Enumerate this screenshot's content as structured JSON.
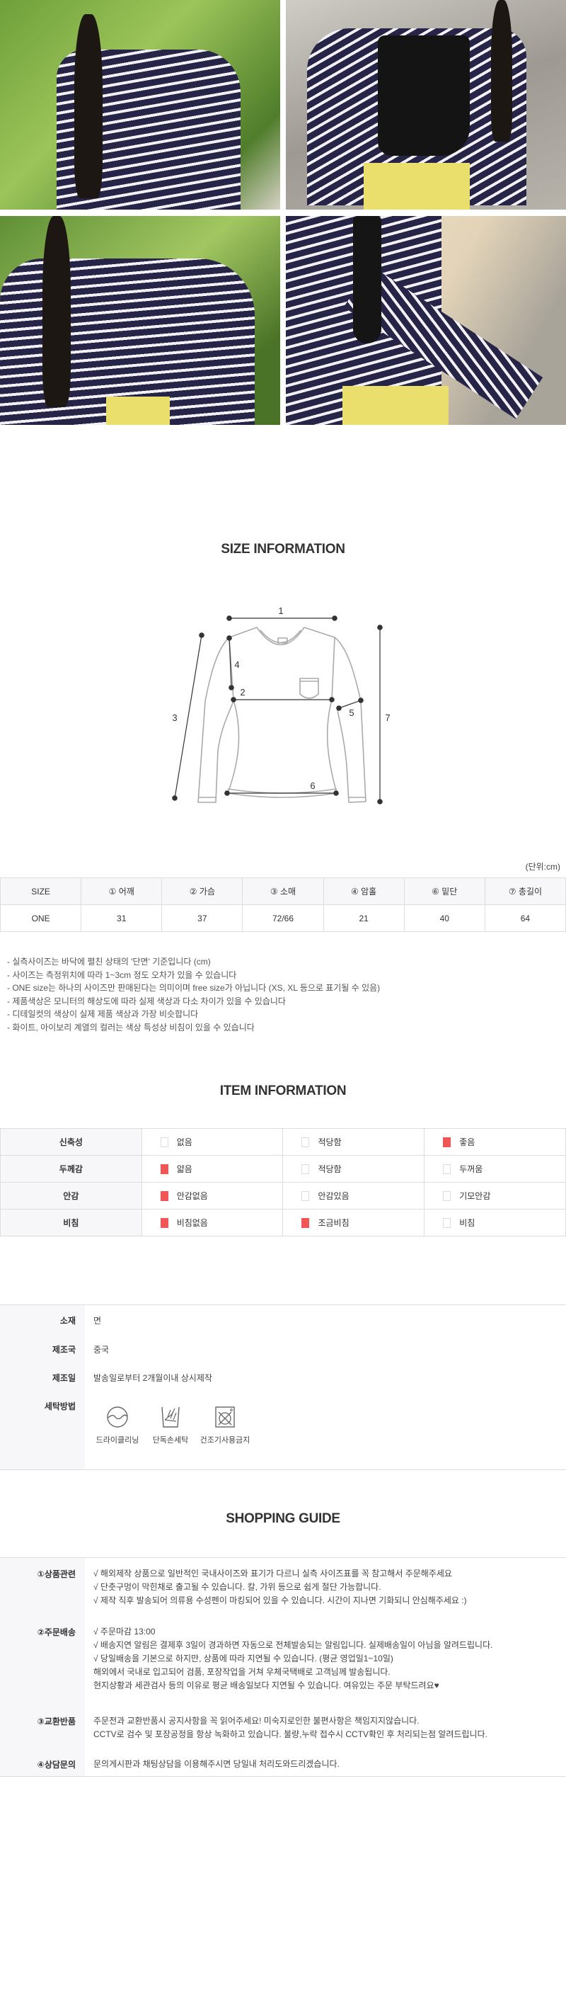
{
  "photos": [
    {
      "alt": "model in striped off-shoulder top, greenery background"
    },
    {
      "alt": "striped top with black shoulder bag and yellow pants"
    },
    {
      "alt": "off-shoulder striped top front view"
    },
    {
      "alt": "striped sleeve detail with yellow pants"
    }
  ],
  "size_info": {
    "title": "SIZE INFORMATION",
    "diagram_labels": [
      "1",
      "2",
      "3",
      "4",
      "5",
      "6",
      "7"
    ],
    "unit": "(단위:cm)",
    "headers": [
      "SIZE",
      "① 어깨",
      "② 가슴",
      "③ 소매",
      "④ 암홀",
      "⑥ 밑단",
      "⑦ 총길이"
    ],
    "rows": [
      [
        "ONE",
        "31",
        "37",
        "72/66",
        "21",
        "40",
        "64"
      ]
    ],
    "notes": [
      "- 실측사이즈는 바닥에 펼친 상태의 '단면' 기준입니다 (cm)",
      "- 사이즈는 측정위치에 따라 1~3cm 정도 오차가 있을 수 있습니다",
      "- ONE size는 하나의 사이즈만 판매된다는 의미이며 free size가 아닙니다 (XS, XL 등으로 표기될 수 있음)",
      "- 제품색상은 모니터의 해상도에 따라 실제 색상과 다소 차이가 있을 수 있습니다",
      "- 디테일컷의 색상이 실제 제품 색상과 가장 비슷합니다",
      "- 화이트, 아이보리 계열의 컬러는 색상 특성상 비침이 있을 수 있습니다"
    ]
  },
  "item_info": {
    "title": "ITEM INFORMATION",
    "check_color": "#f25555",
    "rows": [
      {
        "label": "신축성",
        "options": [
          {
            "text": "없음",
            "checked": false
          },
          {
            "text": "적당함",
            "checked": false
          },
          {
            "text": "좋음",
            "checked": true
          }
        ]
      },
      {
        "label": "두께감",
        "options": [
          {
            "text": "얇음",
            "checked": true
          },
          {
            "text": "적당함",
            "checked": false
          },
          {
            "text": "두꺼움",
            "checked": false
          }
        ]
      },
      {
        "label": "안감",
        "options": [
          {
            "text": "안감없음",
            "checked": true
          },
          {
            "text": "안감있음",
            "checked": false
          },
          {
            "text": "기모안감",
            "checked": false
          }
        ]
      },
      {
        "label": "비침",
        "options": [
          {
            "text": "비침없음",
            "checked": true
          },
          {
            "text": "조금비침",
            "checked": true
          },
          {
            "text": "비침",
            "checked": false
          }
        ]
      }
    ]
  },
  "material": {
    "rows": [
      {
        "label": "소재",
        "value": "면"
      },
      {
        "label": "제조국",
        "value": "중국"
      },
      {
        "label": "제조일",
        "value": "발송일로부터 2개월이내 상시제작"
      }
    ],
    "care_label": "세탁방법",
    "care": [
      {
        "icon": "dry-cleaning-icon",
        "text": "드라이클리닝"
      },
      {
        "icon": "hand-wash-icon",
        "text": "단독손세탁"
      },
      {
        "icon": "no-tumble-dry-icon",
        "text": "건조기사용금지"
      }
    ]
  },
  "shopping_guide": {
    "title": "SHOPPING GUIDE",
    "sections": [
      {
        "label": "①상품관련",
        "lines": [
          "√ 해외제작 상품으로 일반적인 국내사이즈와 표기가 다르니 실측 사이즈표를 꼭 참고해서 주문해주세요",
          "√ 단춧구멍이 막힌채로 출고될 수 있습니다. 칼, 가위 등으로 쉽게 절단 가능합니다.",
          "√ 제작 직후 발송되어 의류용 수성펜이 마킹되어 있을 수 있습니다. 시간이 지나면 기화되니 안심해주세요 :)"
        ]
      },
      {
        "label": "②주문배송",
        "lines": [
          "√ 주문마감 13:00",
          "√ 배송지연 알림은 결제후 3일이 경과하면 자동으로 전체발송되는 알림입니다. 실제배송일이 아님을 알려드립니다.",
          "√ 당일배송을 기본으로 하지만, 상품에 따라 지연될 수 있습니다. (평균 영업일1~10일)",
          "해외에서 국내로 입고되어 검품, 포장작업을 거쳐 우체국택배로 고객님께 발송됩니다.",
          "현지상황과 세관검사 등의 이유로 평균 배송일보다 지연될 수 있습니다. 여유있는 주문 부탁드려요♥"
        ]
      },
      {
        "label": "③교환반품",
        "lines": [
          "주문전과 교환반품시 공지사항을 꼭 읽어주세요! 미숙지로인한 불편사항은 책임지지않습니다.",
          "CCTV로 검수 및 포장공정을 항상 녹화하고 있습니다. 불량,누락 접수시 CCTV확인 후 처리되는점 알려드립니다."
        ]
      },
      {
        "label": "④상담문의",
        "lines": [
          "문의게시판과 채팅상담을 이용해주시면 당일내 처리도와드리겠습니다."
        ]
      }
    ]
  }
}
